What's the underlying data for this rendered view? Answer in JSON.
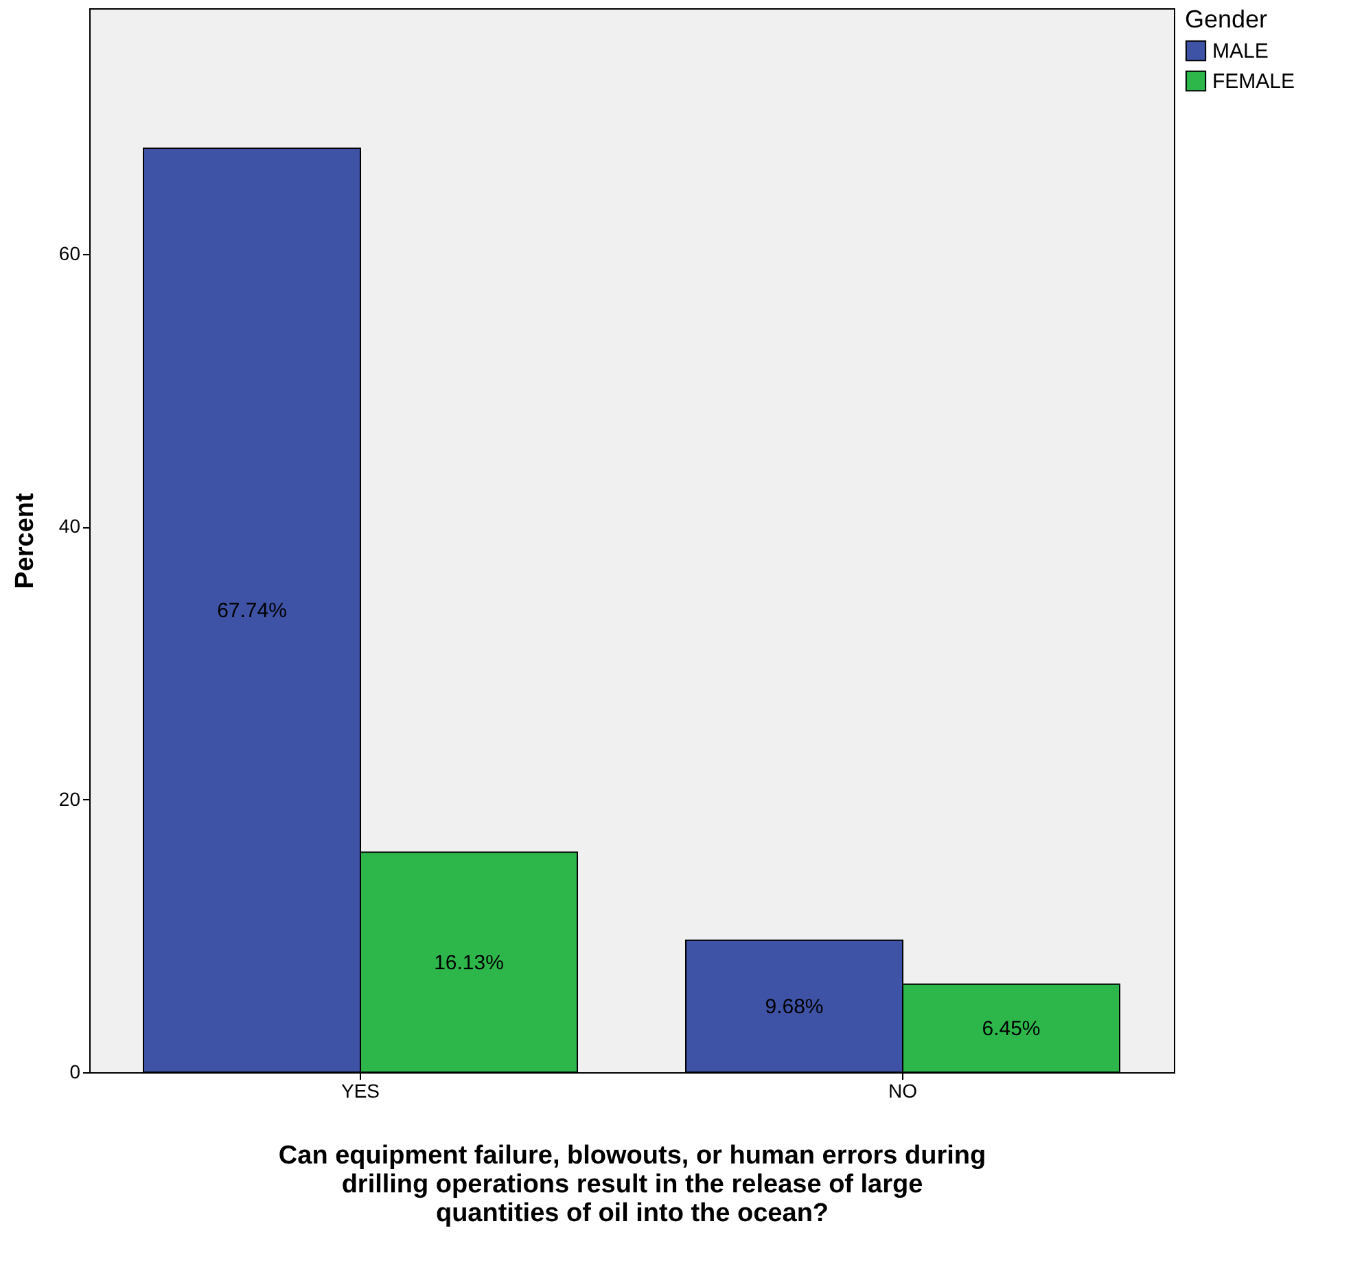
{
  "chart_data": {
    "type": "bar",
    "xlabel": "Can equipment failure, blowouts, or human errors during drilling operations result in the release of large quantities of oil into the ocean?",
    "ylabel": "Percent",
    "legend_title": "Gender",
    "categories": [
      "YES",
      "NO"
    ],
    "series": [
      {
        "name": "MALE",
        "color": "#3e53a6",
        "values": [
          67.74,
          9.68
        ],
        "value_labels": [
          "67.74%",
          "9.68%"
        ]
      },
      {
        "name": "FEMALE",
        "color": "#2db74b",
        "values": [
          16.13,
          6.45
        ],
        "value_labels": [
          "16.13%",
          "6.45%"
        ]
      }
    ],
    "ylim": [
      0,
      78
    ],
    "yticks": [
      0,
      20,
      40,
      60
    ],
    "grid": false,
    "legend": "top right"
  }
}
